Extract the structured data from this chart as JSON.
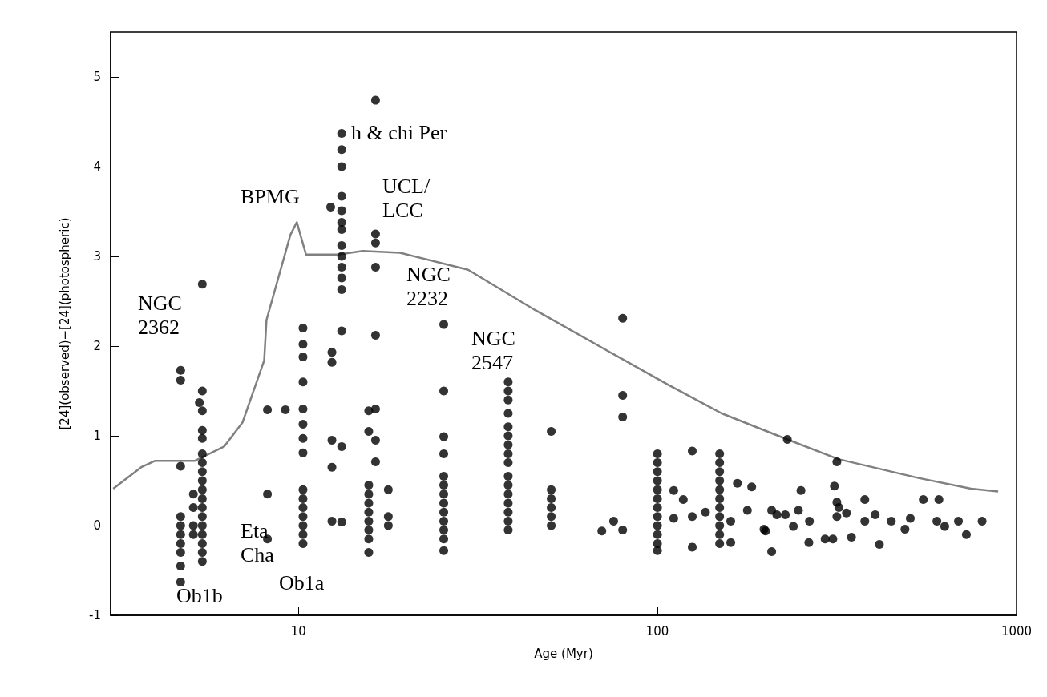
{
  "chart_data": {
    "type": "scatter",
    "xlabel": "Age (Myr)",
    "ylabel": "[24](observed)−[24](photospheric)",
    "log": "x",
    "xlim": [
      3,
      1000
    ],
    "xticks": [
      10,
      100,
      1000
    ],
    "ylim": [
      -1,
      5.5
    ],
    "yticks": [
      -1,
      0,
      1,
      2,
      3,
      4,
      5
    ],
    "marker": "circle",
    "annotations": [
      "NGC\n2362",
      "BPMG",
      "h & chi Per",
      "UCL/\nLCC",
      "NGC\n2232",
      "NGC\n2547",
      "Eta\nCha",
      "Ob1a",
      "Ob1b"
    ],
    "series": [
      {
        "type": "line",
        "color": "#808080",
        "marker": "none",
        "x": [
          3.05,
          3.65,
          3.98,
          5.14,
          6.21,
          6.99,
          8.03,
          8.15,
          9.5,
          9.9,
          10.5,
          12.9,
          15.1,
          19.2,
          29.7,
          45.7,
          76.2,
          107,
          151,
          230,
          319,
          533,
          747,
          889
        ],
        "values": [
          0.41,
          0.65,
          0.72,
          0.72,
          0.88,
          1.15,
          1.84,
          2.29,
          3.24,
          3.38,
          3.02,
          3.02,
          3.06,
          3.04,
          2.85,
          2.4,
          1.9,
          1.57,
          1.25,
          0.96,
          0.74,
          0.53,
          0.41,
          0.38
        ]
      },
      {
        "color": "#000000",
        "x": [
          4.7,
          4.7,
          4.7,
          4.7,
          4.7,
          4.7,
          4.7,
          4.7,
          4.7,
          4.7,
          5.4,
          5.4,
          5.4,
          5.4,
          5.4,
          5.4,
          5.4,
          5.4,
          5.4,
          5.4,
          5.4,
          5.4,
          5.4,
          5.4,
          5.4,
          5.4,
          5.4,
          5.4,
          5.3,
          5.1,
          5.1,
          5.1,
          5.1,
          8.2,
          8.2,
          8.2,
          9.2,
          10.3,
          10.3,
          10.3,
          10.3,
          10.3,
          10.3,
          10.3,
          10.3,
          10.3,
          10.3,
          10.3,
          10.3,
          10.3,
          10.3,
          10.3,
          12.4,
          12.4,
          12.4,
          12.4,
          12.4,
          12.3,
          13.2,
          13.2,
          13.2,
          13.2,
          13.2,
          13.2,
          13.2,
          13.2,
          13.2,
          13.2,
          13.2,
          13.2,
          13.2,
          13.2,
          13.2,
          16.4,
          16.4,
          16.4,
          16.4,
          16.4,
          16.4,
          16.4,
          16.4,
          15.7,
          15.7,
          15.7,
          15.7,
          15.7,
          15.7,
          15.7,
          15.7,
          15.7,
          15.7,
          17.8,
          17.8,
          17.8,
          25.4,
          25.4,
          25.4,
          25.4,
          25.4,
          25.4,
          25.4,
          25.4,
          25.4,
          25.4,
          25.4,
          25.4,
          25.4,
          38.4,
          38.4,
          38.4,
          38.4,
          38.4,
          38.4,
          38.4,
          38.4,
          38.4,
          38.4,
          38.4,
          38.4,
          38.4,
          38.4,
          38.4,
          38.4,
          50.6,
          50.6,
          50.6,
          50.6,
          50.6,
          50.6,
          80,
          80,
          80,
          70,
          75.5,
          80,
          100,
          100,
          100,
          100,
          100,
          100,
          100,
          100,
          100,
          100,
          100,
          100,
          111,
          125,
          118,
          111,
          125,
          125,
          136,
          149,
          149,
          149,
          149,
          149,
          149,
          149,
          149,
          149,
          149,
          149,
          160,
          160,
          167,
          183,
          178,
          208,
          215,
          200,
          208,
          198,
          227,
          251,
          230,
          316,
          311,
          316,
          247,
          239,
          264,
          265,
          293,
          308,
          316,
          336,
          347,
          378,
          378,
          404,
          415,
          448,
          489,
          506,
          550,
          608,
          600,
          631,
          689,
          725,
          802,
          320
        ],
        "values": [
          1.73,
          1.62,
          0.66,
          0.1,
          0.0,
          -0.1,
          -0.2,
          -0.3,
          -0.45,
          -0.63,
          2.69,
          1.5,
          1.28,
          1.06,
          0.97,
          0.8,
          0.7,
          0.6,
          0.5,
          0.4,
          0.3,
          0.2,
          0.1,
          0.0,
          -0.1,
          -0.2,
          -0.3,
          -0.4,
          1.37,
          0.35,
          0.2,
          0.0,
          -0.1,
          1.29,
          0.35,
          -0.15,
          1.29,
          2.2,
          2.02,
          1.88,
          1.6,
          1.3,
          1.13,
          0.97,
          0.81,
          0.4,
          0.3,
          0.2,
          0.1,
          0.0,
          -0.1,
          -0.2,
          1.93,
          1.82,
          0.95,
          0.65,
          0.05,
          3.55,
          0.88,
          0.04,
          4.37,
          4.19,
          4.0,
          3.67,
          3.51,
          3.38,
          3.3,
          3.12,
          3.0,
          2.88,
          2.76,
          2.63,
          2.17,
          4.74,
          3.25,
          3.15,
          2.88,
          2.12,
          1.3,
          0.95,
          0.71,
          1.28,
          1.05,
          0.45,
          0.35,
          0.25,
          0.15,
          0.05,
          -0.05,
          -0.15,
          -0.3,
          0.4,
          0.1,
          0.0,
          2.24,
          1.5,
          0.99,
          0.8,
          0.55,
          0.45,
          0.35,
          0.25,
          0.15,
          0.05,
          -0.05,
          -0.15,
          -0.28,
          1.6,
          1.5,
          1.4,
          1.25,
          1.1,
          1.0,
          0.9,
          0.8,
          0.7,
          0.55,
          0.45,
          0.35,
          0.25,
          0.15,
          0.05,
          -0.05,
          1.05,
          0.4,
          0.3,
          0.2,
          0.1,
          0.0,
          2.31,
          1.45,
          1.21,
          -0.06,
          0.05,
          -0.05,
          0.8,
          0.7,
          0.6,
          0.5,
          0.4,
          0.3,
          0.2,
          0.1,
          0.0,
          -0.1,
          -0.2,
          -0.28,
          0.39,
          0.83,
          0.29,
          0.08,
          0.1,
          -0.24,
          0.15,
          0.8,
          0.7,
          0.6,
          0.5,
          0.4,
          0.3,
          0.2,
          0.1,
          0.0,
          -0.1,
          -0.2,
          -0.19,
          0.05,
          0.47,
          0.43,
          0.17,
          0.17,
          0.12,
          -0.06,
          -0.29,
          -0.04,
          0.12,
          0.39,
          0.96,
          0.71,
          0.44,
          0.26,
          0.17,
          -0.01,
          -0.19,
          0.05,
          -0.15,
          -0.15,
          0.1,
          0.14,
          -0.13,
          0.29,
          0.05,
          0.12,
          -0.21,
          0.05,
          -0.04,
          0.08,
          0.29,
          0.29,
          0.05,
          -0.01,
          0.05,
          -0.1,
          0.05,
          0.2
        ]
      }
    ]
  }
}
